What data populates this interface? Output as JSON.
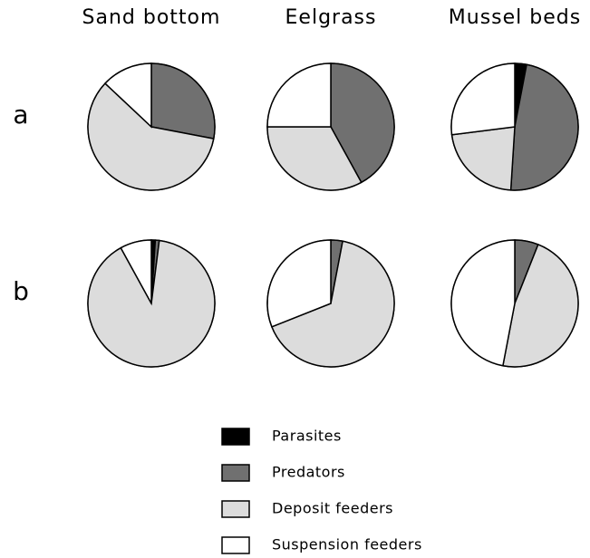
{
  "chart_data": {
    "type": "pie",
    "columns": [
      "Sand bottom",
      "Eelgrass",
      "Mussel beds"
    ],
    "rows": [
      "a",
      "b"
    ],
    "categories": [
      "Parasites",
      "Predators",
      "Deposit feeders",
      "Suspension feeders"
    ],
    "colors": [
      "#000000",
      "#707070",
      "#dcdcdc",
      "#ffffff"
    ],
    "pies": [
      {
        "values": [
          0,
          28,
          59,
          13
        ]
      },
      {
        "values": [
          0,
          42,
          33,
          25
        ]
      },
      {
        "values": [
          3,
          48,
          22,
          27
        ]
      },
      {
        "values": [
          1,
          1,
          90,
          8
        ]
      },
      {
        "values": [
          0,
          3,
          66,
          31
        ]
      },
      {
        "values": [
          0,
          6,
          47,
          47
        ]
      }
    ]
  }
}
